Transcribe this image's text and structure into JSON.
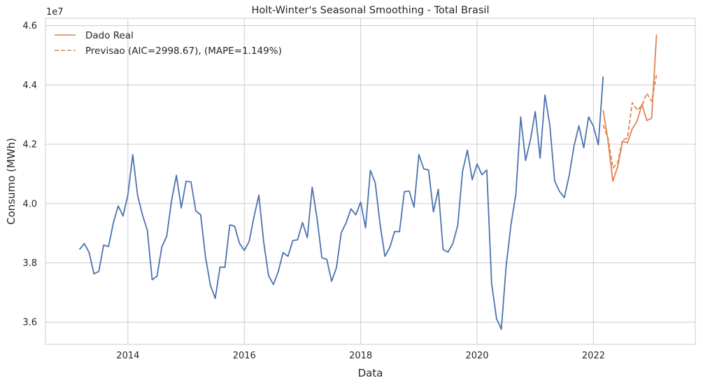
{
  "chart_data": {
    "type": "line",
    "title": "Holt-Winter's Seasonal Smoothing - Total Brasil",
    "xlabel": "Data",
    "ylabel": "Consumo (MWh)",
    "y_offset_label": "1e7",
    "y_multiplier": 10000000,
    "xlim": [
      "2012-08-01",
      "2023-10-01"
    ],
    "ylim": [
      3.525,
      4.625
    ],
    "x_ticks": [
      "2014",
      "2016",
      "2018",
      "2020",
      "2022"
    ],
    "y_ticks": [
      "3.6",
      "3.8",
      "4.0",
      "4.2",
      "4.4",
      "4.6"
    ],
    "grid": true,
    "legend_position": "top-left",
    "series": [
      {
        "color": "#4c72b0",
        "style": "solid",
        "x": [
          "2013-03",
          "2013-04",
          "2013-05",
          "2013-06",
          "2013-07",
          "2013-08",
          "2013-09",
          "2013-10",
          "2013-11",
          "2013-12",
          "2014-01",
          "2014-02",
          "2014-03",
          "2014-04",
          "2014-05",
          "2014-06",
          "2014-07",
          "2014-08",
          "2014-09",
          "2014-10",
          "2014-11",
          "2014-12",
          "2015-01",
          "2015-02",
          "2015-03",
          "2015-04",
          "2015-05",
          "2015-06",
          "2015-07",
          "2015-08",
          "2015-09",
          "2015-10",
          "2015-11",
          "2015-12",
          "2016-01",
          "2016-02",
          "2016-03",
          "2016-04",
          "2016-05",
          "2016-06",
          "2016-07",
          "2016-08",
          "2016-09",
          "2016-10",
          "2016-11",
          "2016-12",
          "2017-01",
          "2017-02",
          "2017-03",
          "2017-04",
          "2017-05",
          "2017-06",
          "2017-07",
          "2017-08",
          "2017-09",
          "2017-10",
          "2017-11",
          "2017-12",
          "2018-01",
          "2018-02",
          "2018-03",
          "2018-04",
          "2018-05",
          "2018-06",
          "2018-07",
          "2018-08",
          "2018-09",
          "2018-10",
          "2018-11",
          "2018-12",
          "2019-01",
          "2019-02",
          "2019-03",
          "2019-04",
          "2019-05",
          "2019-06",
          "2019-07",
          "2019-08",
          "2019-09",
          "2019-10",
          "2019-11",
          "2019-12",
          "2020-01",
          "2020-02",
          "2020-03",
          "2020-04",
          "2020-05",
          "2020-06",
          "2020-07",
          "2020-08",
          "2020-09",
          "2020-10",
          "2020-11",
          "2020-12",
          "2021-01",
          "2021-02",
          "2021-03",
          "2021-04",
          "2021-05",
          "2021-06",
          "2021-07",
          "2021-08",
          "2021-09",
          "2021-10",
          "2021-11",
          "2021-12",
          "2022-01",
          "2022-02",
          "2022-03"
        ],
        "values": [
          3.845,
          3.865,
          3.835,
          3.763,
          3.771,
          3.86,
          3.855,
          3.935,
          3.992,
          3.958,
          4.03,
          4.165,
          4.027,
          3.962,
          3.91,
          3.743,
          3.755,
          3.854,
          3.89,
          4.01,
          4.095,
          3.985,
          4.075,
          4.073,
          3.975,
          3.962,
          3.82,
          3.725,
          3.68,
          3.786,
          3.785,
          3.928,
          3.924,
          3.866,
          3.842,
          3.872,
          3.955,
          4.028,
          3.87,
          3.757,
          3.727,
          3.77,
          3.835,
          3.822,
          3.875,
          3.878,
          3.936,
          3.885,
          4.055,
          3.95,
          3.817,
          3.812,
          3.738,
          3.784,
          3.902,
          3.935,
          3.982,
          3.962,
          4.005,
          3.918,
          4.112,
          4.07,
          3.93,
          3.822,
          3.852,
          3.906,
          3.905,
          4.04,
          4.042,
          3.988,
          4.165,
          4.117,
          4.113,
          3.972,
          4.048,
          3.845,
          3.836,
          3.865,
          3.925,
          4.108,
          4.18,
          4.08,
          4.133,
          4.097,
          4.113,
          3.73,
          3.613,
          3.576,
          3.79,
          3.93,
          4.032,
          4.292,
          4.145,
          4.215,
          4.31,
          4.153,
          4.366,
          4.264,
          4.076,
          4.041,
          4.02,
          4.095,
          4.195,
          4.262,
          4.188,
          4.292,
          4.26,
          4.198,
          4.428
        ]
      },
      {
        "name": "Dado Real",
        "color": "#dd8452",
        "style": "solid",
        "x": [
          "2022-03",
          "2022-04",
          "2022-05",
          "2022-06",
          "2022-07",
          "2022-08",
          "2022-09",
          "2022-10",
          "2022-11",
          "2022-12",
          "2023-01",
          "2023-02",
          "2023-03"
        ],
        "values": [
          4.315,
          4.212,
          4.075,
          4.125,
          4.21,
          4.205,
          4.252,
          4.278,
          4.335,
          4.28,
          4.288,
          4.57,
          null
        ]
      },
      {
        "name": "Previsao (AIC=2998.67), (MAPE=1.149%)",
        "color": "#dd8452",
        "style": "dashed",
        "x": [
          "2022-03",
          "2022-04",
          "2022-05",
          "2022-06",
          "2022-07",
          "2022-08",
          "2022-09",
          "2022-10",
          "2022-11",
          "2022-12",
          "2023-01",
          "2023-02"
        ],
        "values": [
          4.265,
          4.22,
          4.12,
          4.138,
          4.215,
          4.22,
          4.34,
          4.315,
          4.33,
          4.372,
          4.345,
          4.435
        ]
      }
    ]
  }
}
